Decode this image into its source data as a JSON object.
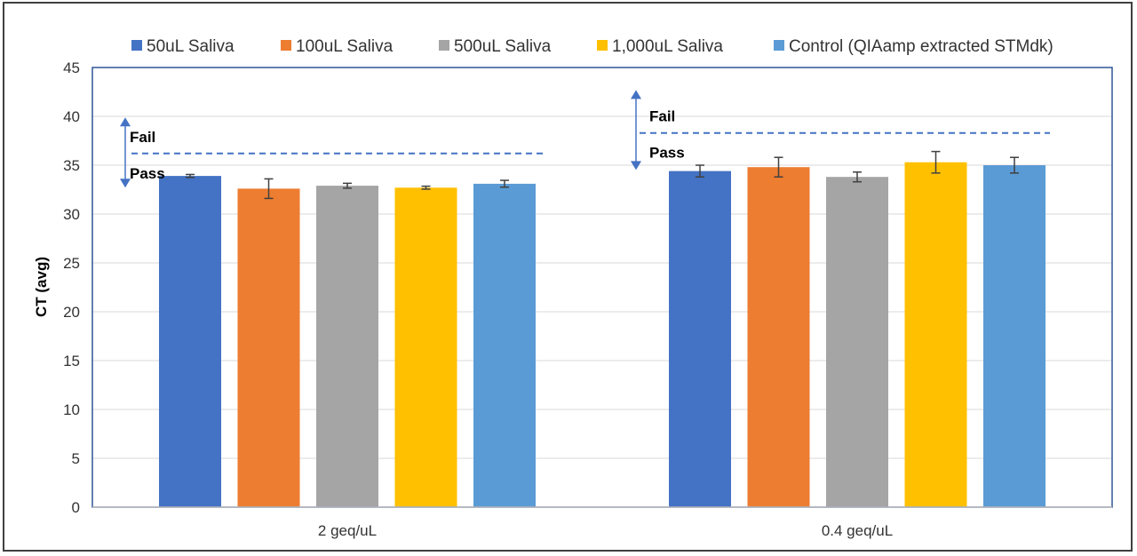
{
  "chart_data": {
    "type": "bar",
    "title": "",
    "xlabel": "",
    "ylabel": "CT (avg)",
    "ylim": [
      0,
      45
    ],
    "yticks": [
      0,
      5,
      10,
      15,
      20,
      25,
      30,
      35,
      40,
      45
    ],
    "grid": true,
    "legend_position": "top",
    "categories": [
      "2 geq/uL",
      "0.4 geq/uL"
    ],
    "series": [
      {
        "name": "50uL Saliva",
        "color": "#4472C4",
        "values": [
          33.9,
          34.4
        ],
        "errors": [
          0.15,
          0.6
        ]
      },
      {
        "name": "100uL Saliva",
        "color": "#ED7D31",
        "values": [
          32.6,
          34.8
        ],
        "errors": [
          1.0,
          1.0
        ]
      },
      {
        "name": "500uL Saliva",
        "color": "#A5A5A5",
        "values": [
          32.9,
          33.8
        ],
        "errors": [
          0.25,
          0.5
        ]
      },
      {
        "name": "1,000uL Saliva",
        "color": "#FFC000",
        "values": [
          32.7,
          35.3
        ],
        "errors": [
          0.15,
          1.1
        ]
      },
      {
        "name": "Control (QIAamp extracted STMdk)",
        "color": "#5B9BD5",
        "values": [
          33.1,
          35.0
        ],
        "errors": [
          0.35,
          0.8
        ]
      }
    ],
    "annotations": [
      {
        "group": "2 geq/uL",
        "threshold": 36.2,
        "upper_label": "Fail",
        "lower_label": "Pass",
        "arrow_range": [
          32.8,
          39.8
        ]
      },
      {
        "group": "0.4 geq/uL",
        "threshold": 38.3,
        "upper_label": "Fail",
        "lower_label": "Pass",
        "arrow_range": [
          34.6,
          42.6
        ]
      }
    ]
  }
}
